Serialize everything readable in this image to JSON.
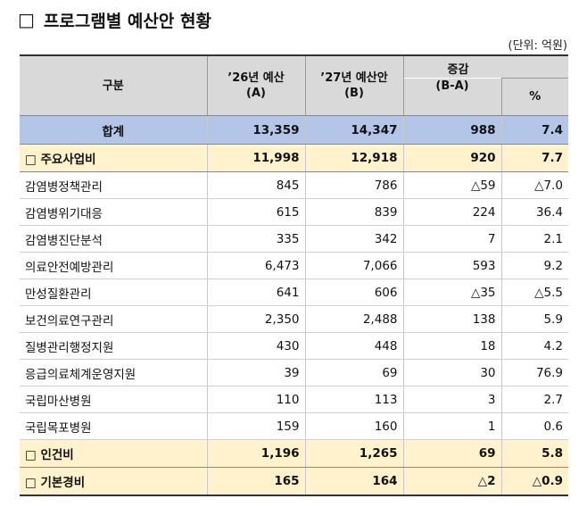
{
  "title": {
    "marker": "□",
    "text": "프로그램별 예산안 현황"
  },
  "unit": "(단위: 억원)",
  "header": {
    "category": "구분",
    "budget26_line1": "’26년 예산",
    "budget26_line2": "(A)",
    "budget27_line1": "’27년 예산안",
    "budget27_line2": "(B)",
    "change_line1": "증감",
    "change_line2": "(B-A)",
    "pct": "%"
  },
  "rows": [
    {
      "type": "total",
      "label": "합계",
      "a": "13,359",
      "b": "14,347",
      "diff": "988",
      "pct": "7.4"
    },
    {
      "type": "cat",
      "label": "□ 주요사업비",
      "a": "11,998",
      "b": "12,918",
      "diff": "920",
      "pct": "7.7"
    },
    {
      "type": "item",
      "label": "감염병정책관리",
      "a": "845",
      "b": "786",
      "diff": "△59",
      "pct": "△7.0"
    },
    {
      "type": "item",
      "label": "감염병위기대응",
      "a": "615",
      "b": "839",
      "diff": "224",
      "pct": "36.4"
    },
    {
      "type": "item",
      "label": "감염병진단분석",
      "a": "335",
      "b": "342",
      "diff": "7",
      "pct": "2.1"
    },
    {
      "type": "item",
      "label": "의료안전예방관리",
      "a": "6,473",
      "b": "7,066",
      "diff": "593",
      "pct": "9.2"
    },
    {
      "type": "item",
      "label": "만성질환관리",
      "a": "641",
      "b": "606",
      "diff": "△35",
      "pct": "△5.5"
    },
    {
      "type": "item",
      "label": "보건의료연구관리",
      "a": "2,350",
      "b": "2,488",
      "diff": "138",
      "pct": "5.9"
    },
    {
      "type": "item",
      "label": "질병관리행정지원",
      "a": "430",
      "b": "448",
      "diff": "18",
      "pct": "4.2"
    },
    {
      "type": "item",
      "label": "응급의료체계운영지원",
      "a": "39",
      "b": "69",
      "diff": "30",
      "pct": "76.9"
    },
    {
      "type": "item",
      "label": "국립마산병원",
      "a": "110",
      "b": "113",
      "diff": "3",
      "pct": "2.7"
    },
    {
      "type": "item",
      "label": "국립목포병원",
      "a": "159",
      "b": "160",
      "diff": "1",
      "pct": "0.6"
    },
    {
      "type": "cat",
      "label": "□ 인건비",
      "a": "1,196",
      "b": "1,265",
      "diff": "69",
      "pct": "5.8"
    },
    {
      "type": "cat",
      "label": "□ 기본경비",
      "a": "165",
      "b": "164",
      "diff": "△2",
      "pct": "△0.9"
    }
  ]
}
